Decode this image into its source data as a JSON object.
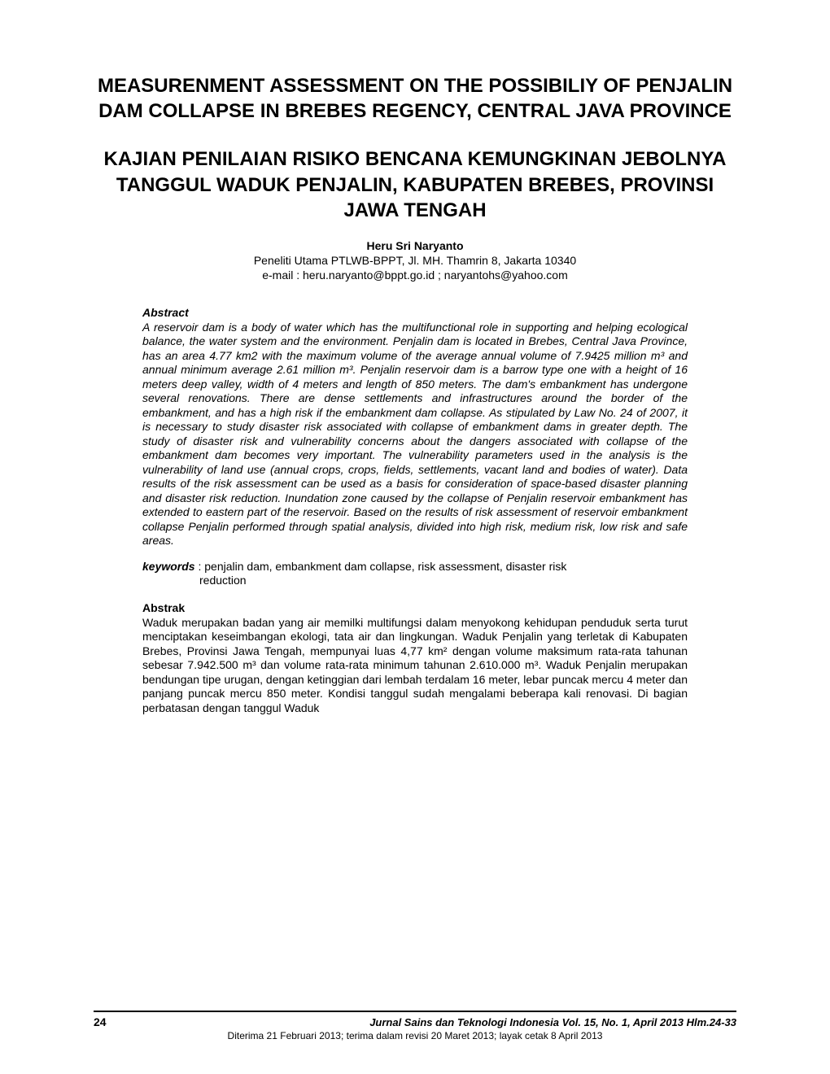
{
  "title_en": "MEASURENMENT ASSESSMENT ON THE POSSIBILIY OF PENJALIN DAM COLLAPSE IN BREBES REGENCY, CENTRAL JAVA PROVINCE",
  "title_id": "KAJIAN PENILAIAN RISIKO BENCANA KEMUNGKINAN JEBOLNYA TANGGUL WADUK PENJALIN, KABUPATEN BREBES, PROVINSI JAWA TENGAH",
  "author": "Heru Sri Naryanto",
  "affiliation": "Peneliti Utama PTLWB-BPPT, Jl. MH. Thamrin 8, Jakarta 10340",
  "email": "e-mail : heru.naryanto@bppt.go.id ; naryantohs@yahoo.com",
  "abstract_heading": "Abstract",
  "abstract_text": "A reservoir dam is a body of water which has the multifunctional role in supporting and helping ecological balance, the water system and the environment. Penjalin dam is located in Brebes, Central Java Province, has an area 4.77 km2 with the maximum volume of the average annual volume of 7.9425 million m³ and annual minimum average 2.61 million m³. Penjalin reservoir dam is a barrow type one with a height of 16 meters deep valley, width of 4 meters and length of 850 meters. The dam's embankment has undergone several renovations. There are dense settlements and infrastructures around the border of the embankment, and has a high risk if the embankment dam collapse. As stipulated by Law No. 24 of 2007, it is necessary to study disaster risk associated with collapse of embankment dams in greater depth. The study of disaster risk and vulnerability concerns about the dangers associated with collapse of the embankment dam becomes very important. The vulnerability parameters used in the analysis is the vulnerability of land use (annual crops, crops, fields, settlements, vacant land and bodies of water). Data results of the risk assessment can be used as a basis for consideration of space-based disaster planning and disaster risk reduction. Inundation zone caused by the collapse of Penjalin reservoir embankment has extended to eastern part of the reservoir. Based on the results of risk assessment of reservoir embankment collapse Penjalin performed through spatial analysis, divided into high risk, medium risk, low risk and safe areas.",
  "keywords_label": "keywords",
  "keywords_text_line1": " : penjalin dam, embankment dam collapse, risk assessment, disaster risk",
  "keywords_text_line2": "reduction",
  "abstrak_heading": "Abstrak",
  "abstrak_text": "Waduk merupakan badan yang air memilki multifungsi dalam menyokong kehidupan penduduk serta turut menciptakan keseimbangan ekologi, tata air dan lingkungan. Waduk Penjalin yang terletak di Kabupaten Brebes, Provinsi Jawa Tengah, mempunyai luas 4,77 km² dengan volume maksimum rata-rata tahunan  sebesar 7.942.500 m³ dan volume rata-rata minimum tahunan 2.610.000 m³. Waduk Penjalin merupakan bendungan tipe urugan, dengan ketinggian dari lembah terdalam 16 meter, lebar puncak mercu 4 meter dan panjang puncak mercu 850 meter. Kondisi tanggul sudah mengalami beberapa kali renovasi. Di bagian perbatasan dengan tanggul Waduk",
  "page_number": "24",
  "journal_info": "Jurnal Sains dan Teknologi Indonesia Vol. 15,  No. 1, April 2013  Hlm.24-33",
  "received_info": "Diterima 21 Februari 2013; terima dalam revisi 20 Maret 2013; layak cetak 8 April 2013",
  "colors": {
    "background": "#ffffff",
    "text": "#000000",
    "line": "#000000"
  },
  "typography": {
    "title_fontsize": 24,
    "body_fontsize": 14,
    "footer_journal_fontsize": 13,
    "footer_received_fontsize": 12,
    "font_family": "Arial"
  }
}
